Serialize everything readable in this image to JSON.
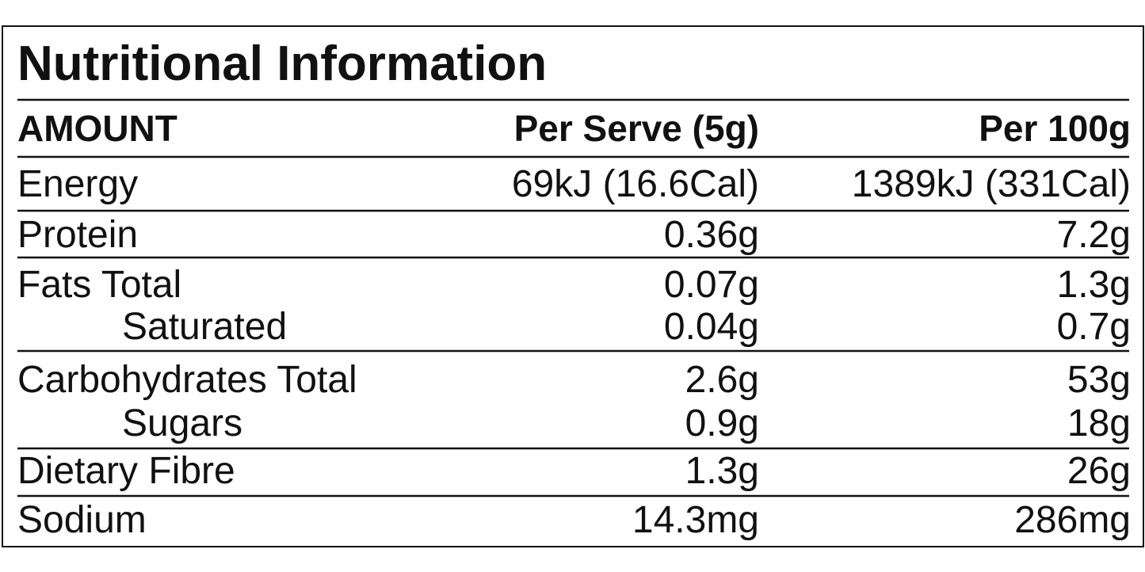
{
  "title": "Nutritional Information",
  "table": {
    "header": [
      "AMOUNT",
      "Per Serve (5g)",
      "Per 100g"
    ],
    "groups": [
      [
        [
          "Energy",
          "69kJ (16.6Cal)",
          "1389kJ (331Cal)"
        ]
      ],
      [
        [
          "Protein",
          "0.36g",
          "7.2g"
        ]
      ],
      [
        [
          "Fats Total",
          "0.07g",
          "1.3g"
        ],
        [
          "Saturated",
          "0.04g",
          "0.7g"
        ]
      ],
      [
        [
          "Carbohydrates Total",
          "2.6g",
          "53g"
        ],
        [
          "Sugars",
          "0.9g",
          "18g"
        ]
      ],
      [
        [
          "Dietary Fibre",
          "1.3g",
          "26g"
        ]
      ],
      [
        [
          "Sodium",
          "14.3mg",
          "286mg"
        ]
      ]
    ]
  }
}
